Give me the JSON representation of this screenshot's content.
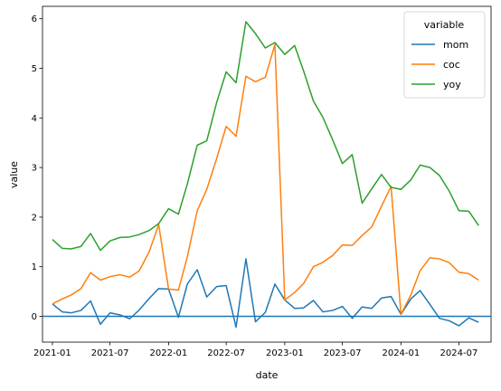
{
  "chart_data": {
    "type": "line",
    "xlabel": "date",
    "ylabel": "value",
    "xlim": [
      "2020-12-01",
      "2024-10-10"
    ],
    "ylim": [
      -0.52,
      6.25
    ],
    "grid": false,
    "legend": {
      "title": "variable",
      "placement": "top-right"
    },
    "x_tick_labels": [
      "2021-01",
      "2021-07",
      "2022-01",
      "2022-07",
      "2023-01",
      "2023-07",
      "2024-01",
      "2024-07"
    ],
    "x_ticks": [
      "2021-01-01",
      "2021-07-01",
      "2022-01-01",
      "2022-07-01",
      "2023-01-01",
      "2023-07-01",
      "2024-01-01",
      "2024-07-01"
    ],
    "y_ticks": [
      0,
      1,
      2,
      3,
      4,
      5,
      6
    ],
    "y_tick_labels": [
      "0",
      "1",
      "2",
      "3",
      "4",
      "5",
      "6"
    ],
    "hline": {
      "y": 0,
      "color": "#1f77b4"
    },
    "x": [
      "2021-01-01",
      "2021-02-01",
      "2021-03-01",
      "2021-04-01",
      "2021-05-01",
      "2021-06-01",
      "2021-07-01",
      "2021-08-01",
      "2021-09-01",
      "2021-10-01",
      "2021-11-01",
      "2021-12-01",
      "2022-01-01",
      "2022-02-01",
      "2022-03-01",
      "2022-04-01",
      "2022-05-01",
      "2022-06-01",
      "2022-07-01",
      "2022-08-01",
      "2022-09-01",
      "2022-10-01",
      "2022-11-01",
      "2022-12-01",
      "2023-01-01",
      "2023-02-01",
      "2023-03-01",
      "2023-04-01",
      "2023-05-01",
      "2023-06-01",
      "2023-07-01",
      "2023-08-01",
      "2023-09-01",
      "2023-10-01",
      "2023-11-01",
      "2023-12-01",
      "2024-01-01",
      "2024-02-01",
      "2024-03-01",
      "2024-04-01",
      "2024-05-01",
      "2024-06-01",
      "2024-07-01",
      "2024-08-01",
      "2024-09-01"
    ],
    "series": [
      {
        "name": "mom",
        "color": "#1f77b4",
        "values": [
          0.25,
          0.09,
          0.07,
          0.12,
          0.31,
          -0.16,
          0.07,
          0.03,
          -0.05,
          0.13,
          0.36,
          0.56,
          0.55,
          -0.02,
          0.65,
          0.94,
          0.39,
          0.6,
          0.62,
          -0.22,
          1.16,
          -0.11,
          0.08,
          0.65,
          0.33,
          0.16,
          0.17,
          0.32,
          0.09,
          0.12,
          0.2,
          -0.04,
          0.19,
          0.16,
          0.37,
          0.4,
          0.04,
          0.35,
          0.52,
          0.24,
          -0.04,
          -0.09,
          -0.19,
          -0.03,
          -0.12
        ]
      },
      {
        "name": "coc",
        "color": "#ff7f0e",
        "values": [
          0.25,
          0.35,
          0.43,
          0.56,
          0.88,
          0.73,
          0.8,
          0.84,
          0.79,
          0.92,
          1.3,
          1.85,
          0.55,
          0.53,
          1.2,
          2.13,
          2.56,
          3.18,
          3.83,
          3.63,
          4.84,
          4.73,
          4.82,
          5.48,
          0.33,
          0.48,
          0.66,
          1.0,
          1.09,
          1.23,
          1.44,
          1.43,
          1.63,
          1.8,
          2.22,
          2.62,
          0.04,
          0.43,
          0.92,
          1.18,
          1.16,
          1.08,
          0.89,
          0.86,
          0.73
        ]
      },
      {
        "name": "yoy",
        "color": "#2ca02c",
        "values": [
          1.55,
          1.37,
          1.36,
          1.41,
          1.67,
          1.33,
          1.52,
          1.59,
          1.6,
          1.65,
          1.73,
          1.87,
          2.17,
          2.06,
          2.67,
          3.45,
          3.54,
          4.31,
          4.93,
          4.71,
          5.94,
          5.7,
          5.41,
          5.52,
          5.28,
          5.46,
          4.95,
          4.34,
          4.01,
          3.55,
          3.08,
          3.26,
          2.28,
          2.57,
          2.86,
          2.6,
          2.56,
          2.75,
          3.05,
          3.0,
          2.84,
          2.52,
          2.13,
          2.12,
          1.83
        ]
      }
    ]
  }
}
